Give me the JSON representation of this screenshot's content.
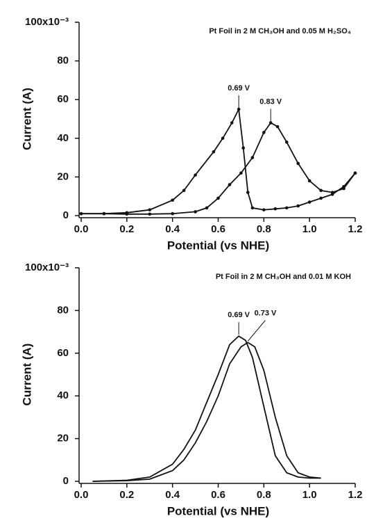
{
  "chart_data": [
    {
      "type": "line",
      "annotation": "Pt Foil in 2 M CH₃OH and 0.05 M H₂SO₄",
      "xlabel": "Potential (vs NHE)",
      "ylabel": "Current (A)",
      "xlim": [
        0,
        1.2
      ],
      "ylim": [
        0,
        100
      ],
      "xticks": [
        {
          "value": 0,
          "label": "0.0"
        },
        0.2,
        0.4,
        0.6,
        0.8,
        {
          "value": 1,
          "label": "1.0"
        },
        1.2
      ],
      "yticks": [
        0,
        20,
        40,
        60,
        80,
        {
          "value": 100,
          "label": "100x10⁻³"
        }
      ],
      "markers": true,
      "peak_labels": [
        "0.83 V",
        "0.69 V"
      ],
      "series": [
        {
          "color": "#111111",
          "x": [
            0,
            0.1,
            0.2,
            0.3,
            0.4,
            0.5,
            0.55,
            0.6,
            0.65,
            0.7,
            0.75,
            0.8,
            0.83,
            0.86,
            0.9,
            0.95,
            1.0,
            1.05,
            1.1,
            1.15,
            1.2
          ],
          "values": [
            1,
            1,
            0.8,
            0.8,
            1,
            2,
            4,
            9,
            16,
            22,
            30,
            43,
            48,
            46,
            38,
            27,
            18,
            13,
            12,
            14,
            22
          ]
        },
        {
          "color": "#111111",
          "x": [
            1.2,
            1.15,
            1.1,
            1.05,
            1.0,
            0.95,
            0.9,
            0.85,
            0.8,
            0.75,
            0.73,
            0.71,
            0.69,
            0.66,
            0.62,
            0.58,
            0.5,
            0.45,
            0.4,
            0.3,
            0.2,
            0.1,
            0
          ],
          "values": [
            22,
            15,
            11,
            9,
            7,
            5,
            4,
            3.5,
            3,
            4,
            12,
            35,
            55,
            48,
            40,
            33,
            21,
            13,
            8,
            3,
            1.5,
            1,
            1
          ]
        }
      ]
    },
    {
      "type": "line",
      "annotation": "Pt Foil in 2 M CH₃OH and 0.01 M KOH",
      "xlabel": "Potential (vs NHE)",
      "ylabel": "Current (A)",
      "xlim": [
        0,
        1.2
      ],
      "ylim": [
        0,
        100
      ],
      "xticks": [
        {
          "value": 0,
          "label": "0.0"
        },
        0.2,
        0.4,
        0.6,
        0.8,
        {
          "value": 1,
          "label": "1.0"
        },
        1.2
      ],
      "yticks": [
        0,
        20,
        40,
        60,
        80,
        {
          "value": 100,
          "label": "100x10⁻³"
        }
      ],
      "markers": false,
      "peak_labels": [
        "0.73 V",
        "0.69 V"
      ],
      "series": [
        {
          "color": "#111111",
          "x": [
            0.05,
            0.2,
            0.3,
            0.4,
            0.45,
            0.5,
            0.55,
            0.6,
            0.65,
            0.7,
            0.73,
            0.76,
            0.8,
            0.85,
            0.9,
            0.95,
            1.0,
            1.05
          ],
          "values": [
            0,
            0.3,
            1,
            5,
            10,
            18,
            28,
            40,
            55,
            63,
            65,
            63,
            52,
            30,
            12,
            4,
            2,
            1.5
          ]
        },
        {
          "color": "#111111",
          "x": [
            1.05,
            1.0,
            0.95,
            0.9,
            0.85,
            0.8,
            0.75,
            0.72,
            0.69,
            0.65,
            0.6,
            0.55,
            0.5,
            0.45,
            0.4,
            0.3,
            0.2,
            0.05
          ],
          "values": [
            1.5,
            1.5,
            2,
            4,
            12,
            35,
            58,
            66,
            68,
            64,
            50,
            37,
            24,
            15,
            8,
            2,
            0.5,
            0
          ]
        }
      ]
    }
  ]
}
